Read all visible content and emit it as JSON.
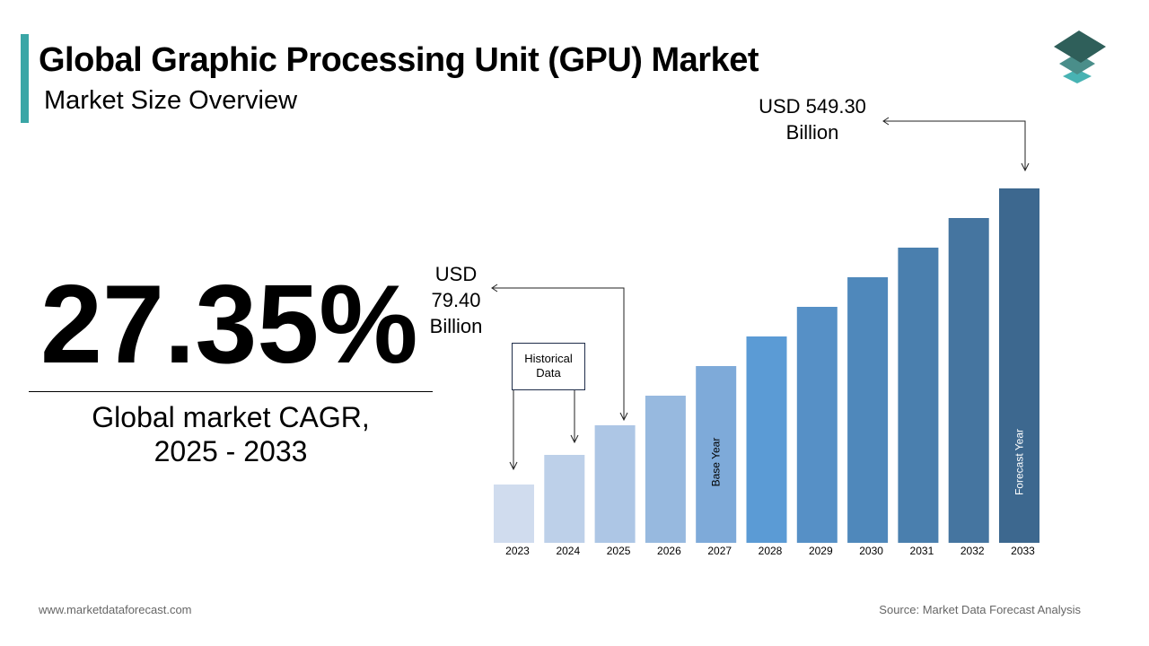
{
  "header": {
    "title": "Global Graphic Processing Unit (GPU) Market",
    "subtitle": "Market Size Overview"
  },
  "cagr": {
    "value": "27.35%",
    "label_line1": "Global market CAGR,",
    "label_line2": "2025 - 2033"
  },
  "chart_data": {
    "type": "bar",
    "categories": [
      "2023",
      "2024",
      "2025",
      "2026",
      "2027",
      "2028",
      "2029",
      "2030",
      "2031",
      "2032",
      "2033"
    ],
    "labeled_values": {
      "2025": 79.4,
      "2033": 549.3
    },
    "unit": "USD Billion",
    "colors": [
      "#d0dcee",
      "#bdd0e9",
      "#adc6e5",
      "#97b9df",
      "#7eaad9",
      "#5b9bd5",
      "#5690c6",
      "#4f88bb",
      "#4a7fae",
      "#4575a0",
      "#3d688f"
    ],
    "bar_annotations": {
      "2027": "Base Year",
      "2033": "Forecast Year"
    },
    "annotations": {
      "start": {
        "line1": "USD",
        "line2": "79.40",
        "line3": "Billion"
      },
      "end": {
        "line1": "USD 549.30",
        "line2": "Billion"
      },
      "historical": {
        "line1": "Historical",
        "line2": "Data"
      }
    }
  },
  "footer": {
    "website": "www.marketdataforecast.com",
    "source": "Source: Market Data Forecast Analysis"
  }
}
